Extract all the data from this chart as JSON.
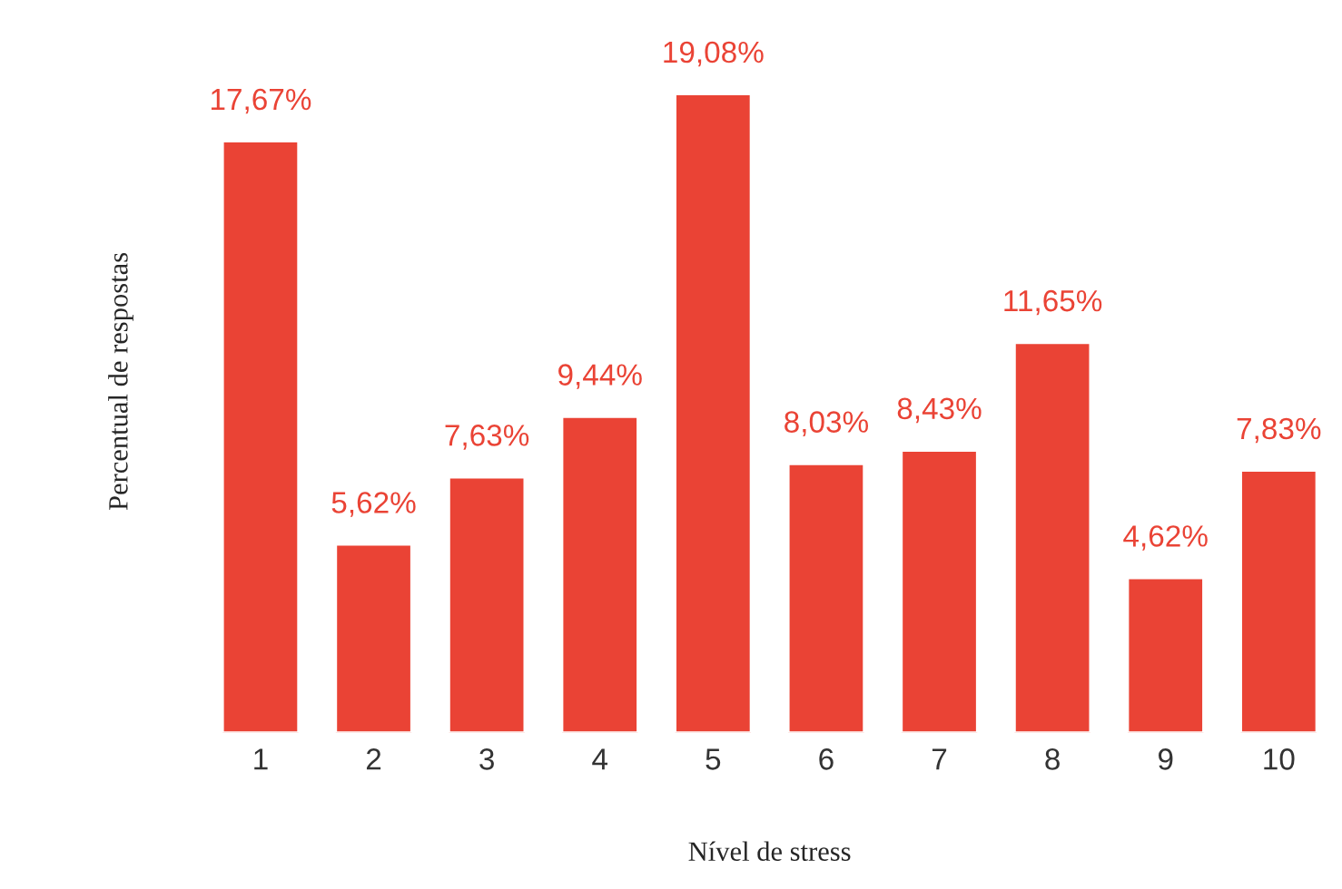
{
  "chart_data": {
    "type": "bar",
    "xlabel": "Nível de stress",
    "ylabel": "Percentual de respostas",
    "categories": [
      "1",
      "2",
      "3",
      "4",
      "5",
      "6",
      "7",
      "8",
      "9",
      "10"
    ],
    "values": [
      17.67,
      5.62,
      7.63,
      9.44,
      19.08,
      8.03,
      8.43,
      11.65,
      4.62,
      7.83
    ],
    "value_labels": [
      "17,67%",
      "5,62%",
      "7,63%",
      "9,44%",
      "19,08%",
      "8,03%",
      "8,43%",
      "11,65%",
      "4,62%",
      "7,83%"
    ],
    "color": "#ea4335",
    "grid": false,
    "legend": false
  }
}
